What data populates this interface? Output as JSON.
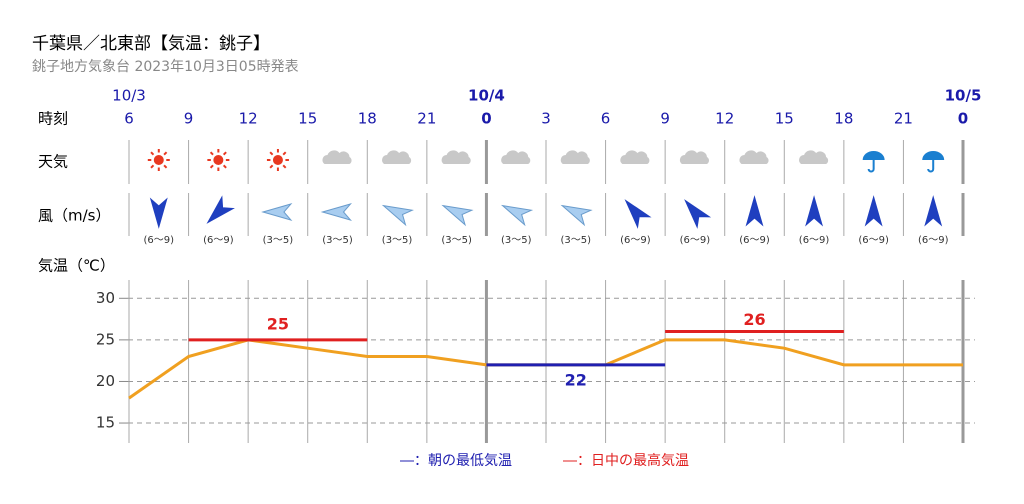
{
  "header": {
    "title": "千葉県／北東部【気温：銚子】",
    "subtitle": "銚子地方気象台 2023年10月3日05時発表"
  },
  "row_labels": [
    "時刻",
    "天気",
    "風（m/s）",
    "気温（℃）"
  ],
  "dates": [
    "10/3",
    "10/4",
    "10/5"
  ],
  "wind_speeds": [
    "(6～9)",
    "(6～9)",
    "(3～5)",
    "(3～5)",
    "(3～5)",
    "(3～5)",
    "(3～5)",
    "(3～5)",
    "(6～9)",
    "(6～9)",
    "(6～9)",
    "(6～9)",
    "(6～9)",
    "(6～9)"
  ],
  "chart_data": {
    "type": "line",
    "categories": [
      "6",
      "9",
      "12",
      "15",
      "18",
      "21",
      "0",
      "3",
      "6",
      "9",
      "12",
      "15",
      "18",
      "21",
      "0"
    ],
    "values": [
      18,
      23,
      25,
      24,
      23,
      23,
      22,
      22,
      22,
      25,
      25,
      24,
      22,
      22,
      22
    ],
    "color": "#f0a020",
    "ylim": [
      12.6,
      32.2
    ],
    "yticks": [
      15,
      20,
      25,
      30
    ],
    "grid": true,
    "daily": [
      {
        "value": 25,
        "color": "#e02020"
      },
      {
        "value": 22,
        "color": "#2020b0"
      },
      {
        "value": 26,
        "color": "#e02020"
      }
    ],
    "legend": [
      {
        "label": "―：朝の最低気温",
        "color": "#2020b0"
      },
      {
        "label": "―：日中の最高気温",
        "color": "#e02020"
      }
    ]
  }
}
